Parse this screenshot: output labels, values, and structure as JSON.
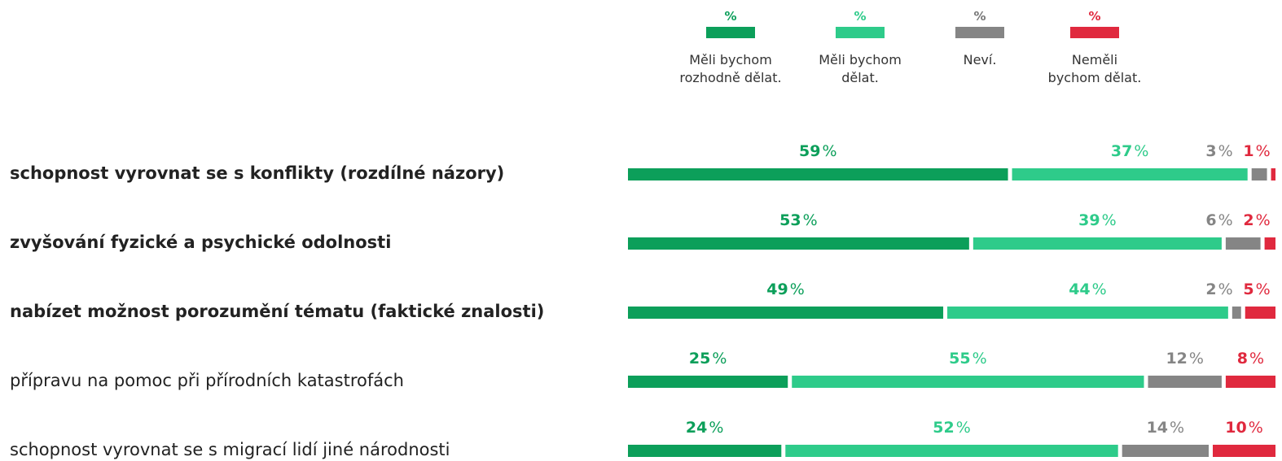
{
  "chart_data": {
    "type": "stacked_bar_horizontal",
    "categories": [
      "schopnost vyrovnat se s konflikty (rozdílné názory)",
      "zvyšování fyzické a psychické odolnosti",
      "nabízet možnost porozumění tématu (faktické znalosti)",
      "přípravu na pomoc při přírodních katastrofách",
      "schopnost vyrovnat se s migrací lidí jiné národnosti"
    ],
    "bold_categories": [
      true,
      true,
      true,
      false,
      false
    ],
    "value_unit": "%",
    "xlim": [
      0,
      100
    ],
    "series": [
      {
        "name": "Měli bychom\nrozhodně dělat.",
        "color": "#0c9f5a",
        "values": [
          59,
          53,
          49,
          25,
          24
        ]
      },
      {
        "name": "Měli bychom\ndělat.",
        "color": "#2ecb8a",
        "values": [
          37,
          39,
          44,
          55,
          52
        ]
      },
      {
        "name": "Neví.",
        "color": "#858585",
        "values": [
          3,
          6,
          2,
          12,
          14
        ]
      },
      {
        "name": "Neměli\nbychom dělat.",
        "color": "#e0293e",
        "values": [
          1,
          2,
          5,
          8,
          10
        ]
      }
    ]
  }
}
